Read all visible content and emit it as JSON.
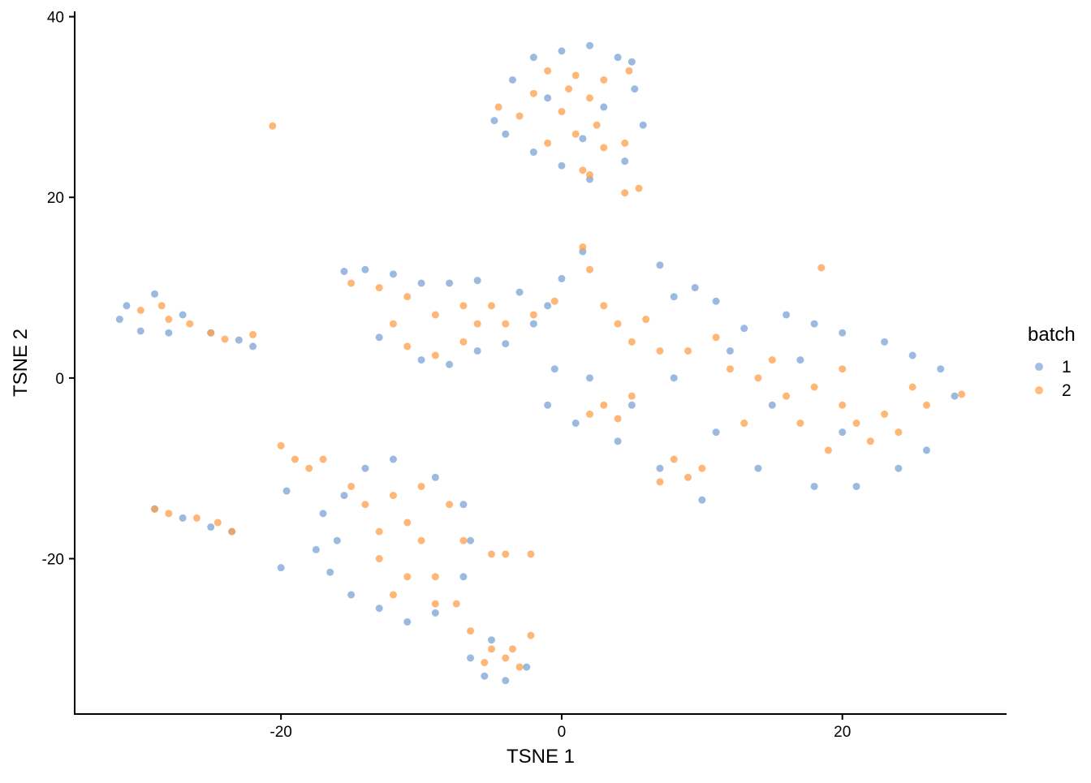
{
  "chart_data": {
    "type": "scatter",
    "title": "",
    "xlabel": "TSNE 1",
    "ylabel": "TSNE 2",
    "xlim": [
      -34.7,
      31.7
    ],
    "ylim": [
      -37.2,
      40.5
    ],
    "x_ticks": [
      -20,
      0,
      20
    ],
    "x_tick_labels": [
      "-20",
      "0",
      "20"
    ],
    "y_ticks": [
      -20,
      0,
      20,
      40
    ],
    "y_tick_labels": [
      "-20",
      "0",
      "20",
      "40"
    ],
    "grid": false,
    "legend": {
      "title": "batch",
      "placement": "right"
    },
    "series": [
      {
        "name": "1",
        "color": "#7ba3d6",
        "points": [
          [
            -4.8,
            28.5
          ],
          [
            -3.5,
            33
          ],
          [
            -2,
            35.5
          ],
          [
            0,
            36.2
          ],
          [
            2,
            36.8
          ],
          [
            4,
            35.5
          ],
          [
            5.2,
            32
          ],
          [
            5.8,
            28
          ],
          [
            4.5,
            24
          ],
          [
            2,
            22
          ],
          [
            0,
            23.5
          ],
          [
            -2,
            25
          ],
          [
            -4,
            27
          ],
          [
            3,
            30
          ],
          [
            -1,
            31
          ],
          [
            1.5,
            26.5
          ],
          [
            5,
            35
          ],
          [
            -31.5,
            6.5
          ],
          [
            -31,
            8
          ],
          [
            -30,
            5.2
          ],
          [
            -29,
            9.3
          ],
          [
            -27,
            7
          ],
          [
            -25,
            5
          ],
          [
            -23,
            4.2
          ],
          [
            -22,
            3.5
          ],
          [
            -28,
            5
          ],
          [
            -15.5,
            11.8
          ],
          [
            -14,
            12
          ],
          [
            -12,
            11.5
          ],
          [
            -10,
            10.5
          ],
          [
            -8,
            10.5
          ],
          [
            -6,
            10.8
          ],
          [
            -3,
            9.5
          ],
          [
            -13,
            4.5
          ],
          [
            -10,
            2
          ],
          [
            -8,
            1.5
          ],
          [
            -6,
            3
          ],
          [
            -4,
            3.8
          ],
          [
            -2,
            6
          ],
          [
            -1,
            8
          ],
          [
            1.5,
            14
          ],
          [
            0,
            11
          ],
          [
            7,
            12.5
          ],
          [
            8,
            9
          ],
          [
            9.5,
            10
          ],
          [
            11,
            8.5
          ],
          [
            13,
            5.5
          ],
          [
            16,
            7
          ],
          [
            18,
            6
          ],
          [
            20,
            5
          ],
          [
            23,
            4
          ],
          [
            25,
            2.5
          ],
          [
            27,
            1
          ],
          [
            28,
            -2
          ],
          [
            26,
            -8
          ],
          [
            24,
            -10
          ],
          [
            21,
            -12
          ],
          [
            18,
            -12
          ],
          [
            14,
            -10
          ],
          [
            10,
            -13.5
          ],
          [
            7,
            -10
          ],
          [
            4,
            -7
          ],
          [
            1,
            -5
          ],
          [
            -1,
            -3
          ],
          [
            -0.5,
            1
          ],
          [
            2,
            0
          ],
          [
            5,
            -3
          ],
          [
            8,
            0
          ],
          [
            11,
            -6
          ],
          [
            15,
            -3
          ],
          [
            12,
            3
          ],
          [
            20,
            -6
          ],
          [
            17,
            2
          ],
          [
            -17,
            -15
          ],
          [
            -17.5,
            -19
          ],
          [
            -16.5,
            -21.5
          ],
          [
            -15,
            -24
          ],
          [
            -13,
            -25.5
          ],
          [
            -11,
            -27
          ],
          [
            -9,
            -26
          ],
          [
            -7,
            -22
          ],
          [
            -6.5,
            -18
          ],
          [
            -7,
            -14
          ],
          [
            -9,
            -11
          ],
          [
            -12,
            -9
          ],
          [
            -14,
            -10
          ],
          [
            -15.5,
            -13
          ],
          [
            -16,
            -18
          ],
          [
            -29,
            -14.5
          ],
          [
            -27,
            -15.5
          ],
          [
            -25,
            -16.5
          ],
          [
            -23.5,
            -17
          ],
          [
            -6.5,
            -31
          ],
          [
            -5.5,
            -33
          ],
          [
            -4,
            -33.5
          ],
          [
            -2.5,
            -32
          ],
          [
            -5,
            -29
          ],
          [
            -20,
            -21
          ],
          [
            -19.6,
            -12.5
          ]
        ]
      },
      {
        "name": "2",
        "color": "#fd9f4a",
        "points": [
          [
            -4.5,
            30
          ],
          [
            -3,
            29
          ],
          [
            -1,
            34
          ],
          [
            0.5,
            32
          ],
          [
            1,
            33.5
          ],
          [
            2,
            31
          ],
          [
            3,
            33
          ],
          [
            -2,
            31.5
          ],
          [
            1,
            27
          ],
          [
            3,
            25.5
          ],
          [
            4.5,
            26
          ],
          [
            1.5,
            23
          ],
          [
            2,
            22.5
          ],
          [
            -1,
            26
          ],
          [
            0,
            29.5
          ],
          [
            2.5,
            28
          ],
          [
            4.8,
            34
          ],
          [
            4.5,
            20.5
          ],
          [
            5.5,
            21
          ],
          [
            -20.6,
            27.9
          ],
          [
            18.5,
            12.2
          ],
          [
            -30,
            7.5
          ],
          [
            -28.5,
            8
          ],
          [
            -28,
            6.5
          ],
          [
            -26.5,
            6
          ],
          [
            -25,
            5
          ],
          [
            -24,
            4.3
          ],
          [
            -22,
            4.8
          ],
          [
            -15,
            10.5
          ],
          [
            -13,
            10
          ],
          [
            -11,
            9
          ],
          [
            -12,
            6
          ],
          [
            -11,
            3.5
          ],
          [
            -9,
            2.5
          ],
          [
            -7,
            4
          ],
          [
            -6,
            6
          ],
          [
            -5,
            8
          ],
          [
            -4,
            6
          ],
          [
            -7,
            8
          ],
          [
            -9,
            7
          ],
          [
            -2,
            7
          ],
          [
            -0.5,
            8.5
          ],
          [
            1.5,
            14.5
          ],
          [
            2,
            12
          ],
          [
            3,
            8
          ],
          [
            4,
            6
          ],
          [
            5,
            4
          ],
          [
            7,
            3
          ],
          [
            3,
            -3
          ],
          [
            2,
            -4
          ],
          [
            4,
            -4.5
          ],
          [
            5,
            -2
          ],
          [
            8,
            -9
          ],
          [
            9,
            -11
          ],
          [
            7,
            -11.5
          ],
          [
            10,
            -10
          ],
          [
            9,
            3
          ],
          [
            11,
            4.5
          ],
          [
            14,
            0
          ],
          [
            16,
            -2
          ],
          [
            18,
            -1
          ],
          [
            20,
            -3
          ],
          [
            21,
            -5
          ],
          [
            22,
            -7
          ],
          [
            23,
            -4
          ],
          [
            24,
            -6
          ],
          [
            19,
            -8
          ],
          [
            17,
            -5
          ],
          [
            15,
            2
          ],
          [
            13,
            -5
          ],
          [
            25,
            -1
          ],
          [
            26,
            -3
          ],
          [
            28.5,
            -1.8
          ],
          [
            12,
            1
          ],
          [
            6,
            6.5
          ],
          [
            20,
            1
          ],
          [
            -15,
            -12
          ],
          [
            -14,
            -14
          ],
          [
            -13,
            -17
          ],
          [
            -12,
            -13
          ],
          [
            -11,
            -16
          ],
          [
            -10,
            -18
          ],
          [
            -9,
            -22
          ],
          [
            -11,
            -22
          ],
          [
            -12,
            -24
          ],
          [
            -8,
            -14
          ],
          [
            -10,
            -12
          ],
          [
            -13,
            -20
          ],
          [
            -9,
            -25
          ],
          [
            -7.5,
            -25
          ],
          [
            -7,
            -18
          ],
          [
            -20,
            -7.5
          ],
          [
            -19,
            -9
          ],
          [
            -18,
            -10
          ],
          [
            -17,
            -9
          ],
          [
            -5,
            -19.5
          ],
          [
            -4,
            -19.5
          ],
          [
            -2.2,
            -19.5
          ],
          [
            -29,
            -14.5
          ],
          [
            -28,
            -15
          ],
          [
            -26,
            -15.5
          ],
          [
            -24.5,
            -16
          ],
          [
            -23.5,
            -17
          ],
          [
            -5,
            -30
          ],
          [
            -4,
            -31
          ],
          [
            -3.5,
            -30
          ],
          [
            -5.5,
            -31.5
          ],
          [
            -3,
            -32
          ],
          [
            -2.2,
            -28.5
          ],
          [
            -6.5,
            -28
          ]
        ]
      }
    ]
  }
}
